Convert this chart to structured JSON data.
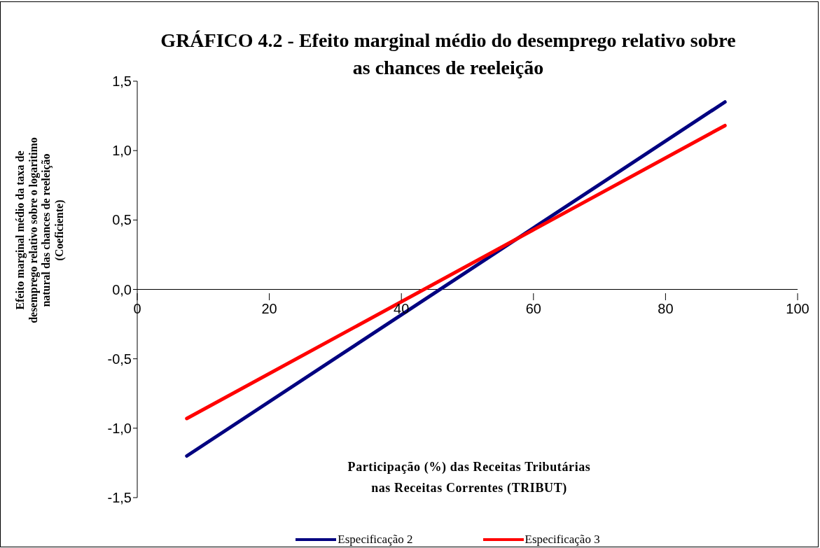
{
  "chart_data": {
    "type": "line",
    "title": "GRÁFICO 4.2 - Efeito marginal médio do desemprego relativo sobre\nas chances de reeleição",
    "xlabel": "Participação (%) das Receitas Tributárias\nnas Receitas Correntes (TRIBUT)",
    "ylabel": "Efeito marginal médio da taxa de\ndesemprego relativo sobre o logaritimo\nnatural das chances de reeleição\n(Coeficiente)",
    "x": [
      7.5,
      89
    ],
    "series": [
      {
        "name": "Especificação 2",
        "color": "#000080",
        "values": [
          -1.2,
          1.35
        ]
      },
      {
        "name": "Especificação 3",
        "color": "#ff0000",
        "values": [
          -0.93,
          1.18
        ]
      }
    ],
    "xlim": [
      0,
      100
    ],
    "xticks": [
      0,
      20,
      40,
      60,
      80,
      100
    ],
    "ylim": [
      -1.5,
      1.5
    ],
    "yticks": [
      {
        "value": -1.5,
        "label": "-1,5"
      },
      {
        "value": -1,
        "label": "-1,0"
      },
      {
        "value": -0.5,
        "label": "-0,5"
      },
      {
        "value": 0,
        "label": "0,0"
      },
      {
        "value": 0.5,
        "label": "0,5"
      },
      {
        "value": 1,
        "label": "1,0"
      },
      {
        "value": 1.5,
        "label": "1,5"
      }
    ],
    "grid": false,
    "legend": "bottom",
    "marker": "none",
    "line_style": "solid"
  }
}
